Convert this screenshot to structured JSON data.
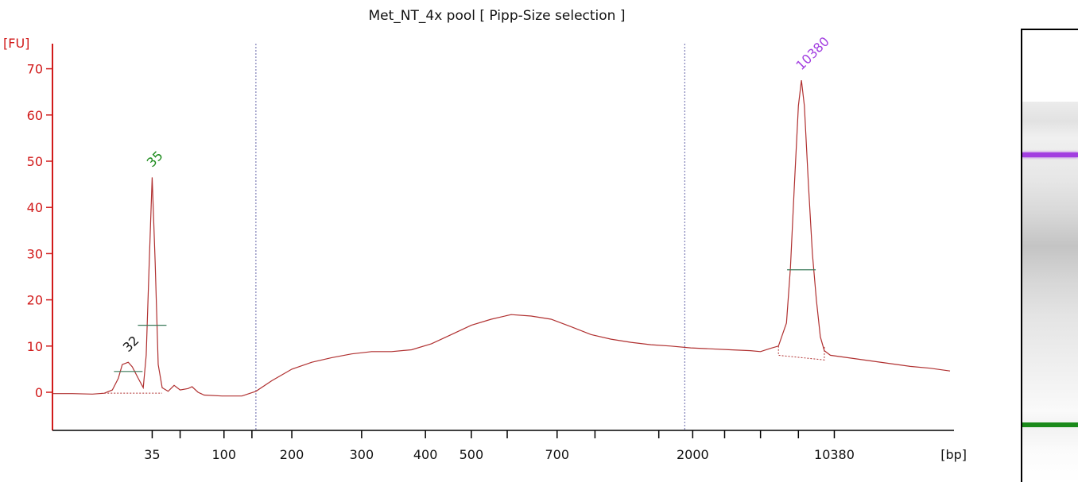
{
  "title": "Met_NT_4x pool  [ Pipp-Size selection ]",
  "colors": {
    "axis_y": "#d11a1a",
    "trace": "#b03030",
    "upper_marker": "#a23ee0",
    "lower_marker": "#1a8a1a",
    "peak": "#111111"
  },
  "chart_data": {
    "type": "line",
    "title": "Met_NT_4x pool  [ Pipp-Size selection ]",
    "ylabel": "[FU]",
    "xlabel": "[bp]",
    "ylim": [
      -8,
      72
    ],
    "yticks": [
      0,
      10,
      20,
      30,
      40,
      50,
      60,
      70
    ],
    "xtick_labels": [
      "35",
      "100",
      "200",
      "300",
      "400",
      "500",
      "700",
      "2000",
      "10380"
    ],
    "x_unit_positions": [
      5.0,
      8.6,
      12.0,
      15.5,
      18.7,
      21.0,
      25.3,
      32.1,
      39.2
    ],
    "minor_ticks_units": [
      6.4,
      10.0,
      22.8,
      27.2,
      30.4,
      33.7,
      35.5,
      37.4
    ],
    "region_boundaries_units": [
      10.2,
      31.7
    ],
    "x_unit_range": [
      0,
      45.2
    ],
    "series": [
      {
        "points": [
          [
            0,
            -0.3
          ],
          [
            1,
            -0.3
          ],
          [
            2,
            -0.4
          ],
          [
            2.6,
            -0.2
          ],
          [
            3,
            0.5
          ],
          [
            3.3,
            3
          ],
          [
            3.5,
            6
          ],
          [
            3.8,
            6.5
          ],
          [
            4.0,
            5.5
          ],
          [
            4.3,
            3
          ],
          [
            4.55,
            1
          ],
          [
            4.7,
            8
          ],
          [
            4.85,
            28
          ],
          [
            5.0,
            46.5
          ],
          [
            5.15,
            28
          ],
          [
            5.3,
            6
          ],
          [
            5.5,
            1
          ],
          [
            5.8,
            0.2
          ],
          [
            6.1,
            1.5
          ],
          [
            6.4,
            0.5
          ],
          [
            6.8,
            0.8
          ],
          [
            7.0,
            1.2
          ],
          [
            7.3,
            0
          ],
          [
            7.6,
            -0.6
          ],
          [
            8.5,
            -0.8
          ],
          [
            9.5,
            -0.8
          ],
          [
            10.2,
            0.2
          ],
          [
            11,
            2.5
          ],
          [
            12,
            5
          ],
          [
            13,
            6.5
          ],
          [
            14,
            7.5
          ],
          [
            15,
            8.3
          ],
          [
            16,
            8.8
          ],
          [
            17,
            8.8
          ],
          [
            18,
            9.2
          ],
          [
            19,
            10.5
          ],
          [
            20,
            12.5
          ],
          [
            21,
            14.5
          ],
          [
            22,
            15.8
          ],
          [
            23,
            16.8
          ],
          [
            24,
            16.5
          ],
          [
            25,
            15.8
          ],
          [
            26,
            14.2
          ],
          [
            27,
            12.5
          ],
          [
            28,
            11.5
          ],
          [
            29,
            10.8
          ],
          [
            30,
            10.3
          ],
          [
            31,
            10
          ],
          [
            32,
            9.6
          ],
          [
            33,
            9.4
          ],
          [
            34,
            9.2
          ],
          [
            35,
            9
          ],
          [
            35.5,
            8.8
          ],
          [
            36,
            9.5
          ],
          [
            36.4,
            10
          ],
          [
            36.8,
            15
          ],
          [
            37.0,
            27
          ],
          [
            37.2,
            45
          ],
          [
            37.4,
            62
          ],
          [
            37.55,
            67.5
          ],
          [
            37.7,
            62
          ],
          [
            37.9,
            45
          ],
          [
            38.1,
            30
          ],
          [
            38.3,
            20
          ],
          [
            38.5,
            12
          ],
          [
            38.7,
            9
          ],
          [
            39,
            8
          ],
          [
            40,
            7.4
          ],
          [
            41,
            6.8
          ],
          [
            42,
            6.2
          ],
          [
            43,
            5.6
          ],
          [
            44,
            5.2
          ],
          [
            45,
            4.6
          ]
        ]
      }
    ],
    "peaks": [
      {
        "label": "35",
        "x": 5.0,
        "y": 46.5,
        "width_y": 14.5
      },
      {
        "label": "32",
        "x": 3.8,
        "y": 6.5,
        "width_y": 4.5
      },
      {
        "label": "10380",
        "x": 37.55,
        "y": 67.5,
        "width_y": 26.5
      }
    ]
  }
}
